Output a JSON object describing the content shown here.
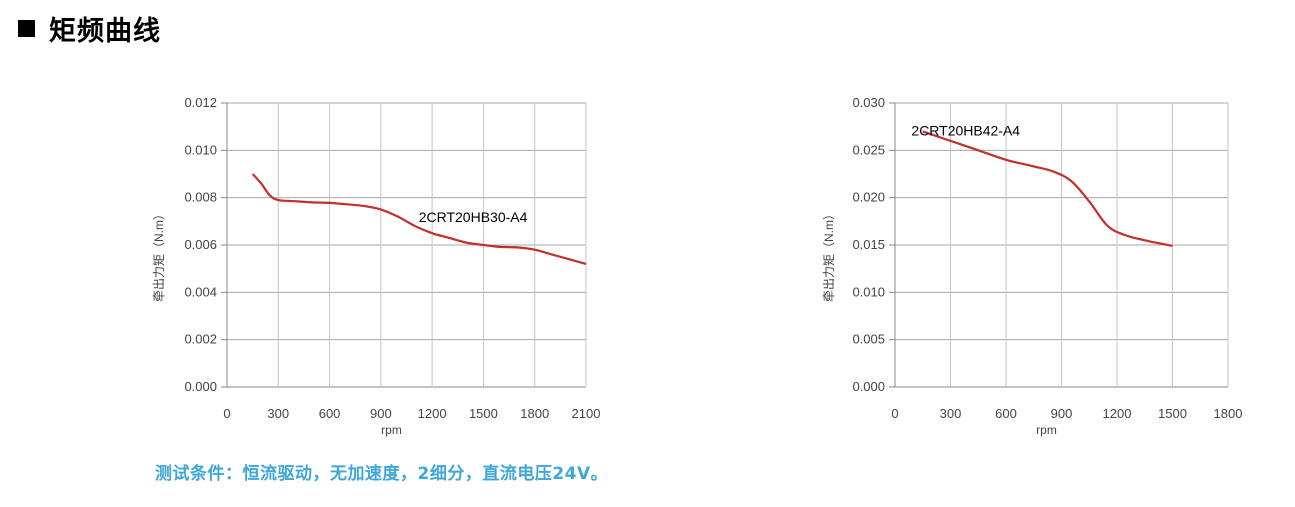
{
  "header": {
    "title": "矩频曲线"
  },
  "chart_data": [
    {
      "type": "line",
      "xlabel": "rpm",
      "ylabel": "牵出力矩（N.m）",
      "xlim": [
        0,
        2100
      ],
      "ylim": [
        0,
        0.012
      ],
      "xticks": [
        0,
        300,
        600,
        900,
        1200,
        1500,
        1800,
        2100
      ],
      "xtick_labels": [
        "0",
        "300",
        "600",
        "900",
        "1200",
        "1500",
        "1800",
        "2100"
      ],
      "yticks": [
        0,
        0.002,
        0.004,
        0.006,
        0.008,
        0.01,
        0.012
      ],
      "ytick_labels": [
        "0.000",
        "0.002",
        "0.004",
        "0.006",
        "0.008",
        "0.010",
        "0.012"
      ],
      "grid": "horizontal",
      "series": [
        {
          "name": "2CRT20HB30-A4",
          "color": "#c0302e",
          "x": [
            150,
            200,
            250,
            300,
            400,
            500,
            600,
            700,
            800,
            900,
            1000,
            1100,
            1200,
            1300,
            1400,
            1500,
            1600,
            1700,
            1800,
            1900,
            2000,
            2100
          ],
          "y": [
            0.009,
            0.0086,
            0.0081,
            0.0079,
            0.00785,
            0.0078,
            0.00778,
            0.00772,
            0.00765,
            0.0075,
            0.0072,
            0.0068,
            0.0065,
            0.0063,
            0.0061,
            0.006,
            0.00592,
            0.0059,
            0.0058,
            0.0056,
            0.0054,
            0.0052
          ]
        }
      ]
    },
    {
      "type": "line",
      "xlabel": "rpm",
      "ylabel": "牵出力矩（N.m）",
      "xlim": [
        0,
        1800
      ],
      "ylim": [
        0,
        0.03
      ],
      "xticks": [
        0,
        300,
        600,
        900,
        1200,
        1500,
        1800
      ],
      "xtick_labels": [
        "0",
        "300",
        "600",
        "900",
        "1200",
        "1500",
        "1800"
      ],
      "yticks": [
        0,
        0.005,
        0.01,
        0.015,
        0.02,
        0.025,
        0.03
      ],
      "ytick_labels": [
        "0.000",
        "0.005",
        "0.010",
        "0.015",
        "0.020",
        "0.025",
        "0.030"
      ],
      "grid": "horizontal",
      "series": [
        {
          "name": "2CRT20HB42-A4",
          "color": "#c0302e",
          "x": [
            150,
            300,
            450,
            600,
            750,
            850,
            950,
            1050,
            1150,
            1250,
            1350,
            1450,
            1500
          ],
          "y": [
            0.027,
            0.026,
            0.025,
            0.024,
            0.0233,
            0.0228,
            0.0218,
            0.0196,
            0.017,
            0.016,
            0.0155,
            0.0151,
            0.0149
          ]
        }
      ]
    }
  ],
  "footer": {
    "text": "测试条件：恒流驱动，无加速度，2细分，直流电压24V。"
  }
}
